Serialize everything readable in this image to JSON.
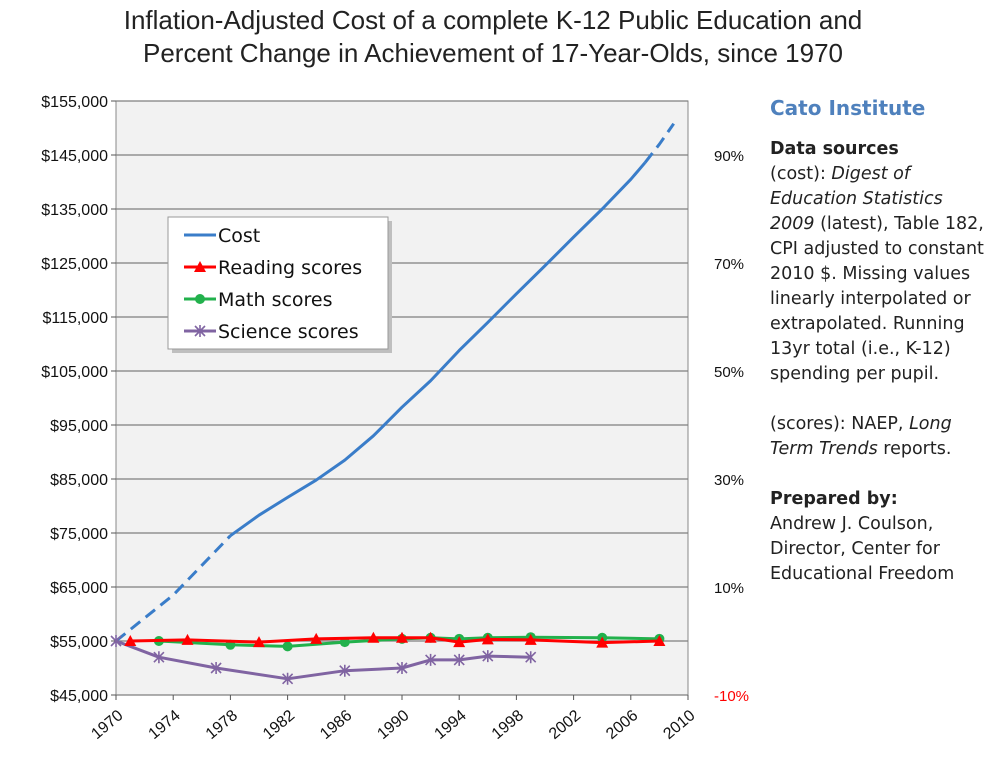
{
  "title_lines": [
    "Inflation-Adjusted Cost of a complete K-12 Public Education and",
    "Percent Change in Achievement of 17-Year-Olds, since 1970"
  ],
  "sidebar": {
    "organization": "Cato Institute",
    "data_sources_title": "Data sources",
    "cost_source": {
      "label": "(cost): ",
      "italic": "Digest of Education Statistics 2009",
      "rest": " (latest), Table 182, CPI adjusted to constant 2010 $. Missing values linearly interpolated or extrapolated. Running 13yr total (i.e., K-12) spending per pupil."
    },
    "score_source": {
      "label": "(scores): NAEP, ",
      "italic": "Long Term Trends",
      "rest": " reports."
    },
    "prepared_by_title": "Prepared by:",
    "author_lines": [
      "Andrew J. Coulson,",
      "Director, Center for",
      "Educational Freedom"
    ]
  },
  "colors": {
    "cost": "#3a7dc9",
    "reading": "#ff0000",
    "math": "#22b14c",
    "science": "#8064a2",
    "plot_bg": "#f2f2f2",
    "grid": "#7f7f7f",
    "negative_tick": "#ff0000",
    "org": "#4f81bd"
  },
  "chart_data": {
    "type": "line",
    "title": "Inflation-Adjusted Cost of a complete K-12 Public Education and Percent Change in Achievement of 17-Year-Olds, since 1970",
    "xlim": [
      1970,
      2010
    ],
    "x_ticks": [
      1970,
      1974,
      1978,
      1982,
      1986,
      1990,
      1994,
      1998,
      2002,
      2006,
      2010
    ],
    "x_tick_labels": [
      "1970",
      "1974",
      "1978",
      "1982",
      "1986",
      "1990",
      "1994",
      "1998",
      "2002",
      "2006",
      "2010"
    ],
    "y_left": {
      "range": [
        45000,
        155000
      ],
      "ticks": [
        45000,
        55000,
        65000,
        75000,
        85000,
        95000,
        105000,
        115000,
        125000,
        135000,
        145000,
        155000
      ],
      "tick_labels": [
        "$45,000",
        "$55,000",
        "$65,000",
        "$75,000",
        "$85,000",
        "$95,000",
        "$105,000",
        "$115,000",
        "$125,000",
        "$135,000",
        "$145,000",
        "$155,000"
      ]
    },
    "y_right": {
      "range": [
        -10,
        100
      ],
      "ticks": [
        -10,
        10,
        30,
        50,
        70,
        90
      ],
      "tick_labels": [
        "-10%",
        "10%",
        "30%",
        "50%",
        "70%",
        "90%"
      ]
    },
    "grid": true,
    "legend": {
      "position": "top-left"
    },
    "series": [
      {
        "name": "Cost",
        "axis": "left",
        "marker": "none",
        "segments": [
          {
            "style": "dashed",
            "x": [
              1970,
              1974,
              1978
            ],
            "y": [
              55000,
              63500,
              74500
            ]
          },
          {
            "style": "solid",
            "x": [
              1978,
              1980,
              1982,
              1984,
              1986,
              1988,
              1990,
              1992,
              1994,
              1996,
              1998,
              2000,
              2002,
              2004,
              2006,
              2007
            ],
            "y": [
              74500,
              78300,
              81600,
              84800,
              88500,
              93000,
              98300,
              103200,
              108800,
              114000,
              119300,
              124500,
              129800,
              135000,
              140500,
              143600
            ]
          },
          {
            "style": "dashed",
            "x": [
              2007,
              2008,
              2009
            ],
            "y": [
              143600,
              147000,
              150800
            ]
          }
        ]
      },
      {
        "name": "Reading scores",
        "axis": "right",
        "marker": "triangle",
        "x": [
          1971,
          1975,
          1980,
          1984,
          1988,
          1990,
          1992,
          1994,
          1996,
          1999,
          2004,
          2008
        ],
        "y": [
          0,
          0.2,
          -0.2,
          0.4,
          0.6,
          0.6,
          0.6,
          -0.2,
          0.3,
          0.2,
          -0.3,
          0
        ]
      },
      {
        "name": "Math scores",
        "axis": "right",
        "marker": "circle",
        "x": [
          1973,
          1978,
          1982,
          1986,
          1990,
          1992,
          1994,
          1996,
          1999,
          2004,
          2008
        ],
        "y": [
          0,
          -0.7,
          -1.0,
          -0.2,
          0.4,
          0.6,
          0.4,
          0.6,
          0.7,
          0.6,
          0.4
        ]
      },
      {
        "name": "Science scores",
        "axis": "right",
        "marker": "star",
        "x": [
          1970,
          1973,
          1977,
          1982,
          1986,
          1990,
          1992,
          1994,
          1996,
          1999
        ],
        "y": [
          0,
          -3.0,
          -5.0,
          -7.0,
          -5.5,
          -5.0,
          -3.5,
          -3.5,
          -2.8,
          -3.0
        ]
      }
    ]
  }
}
